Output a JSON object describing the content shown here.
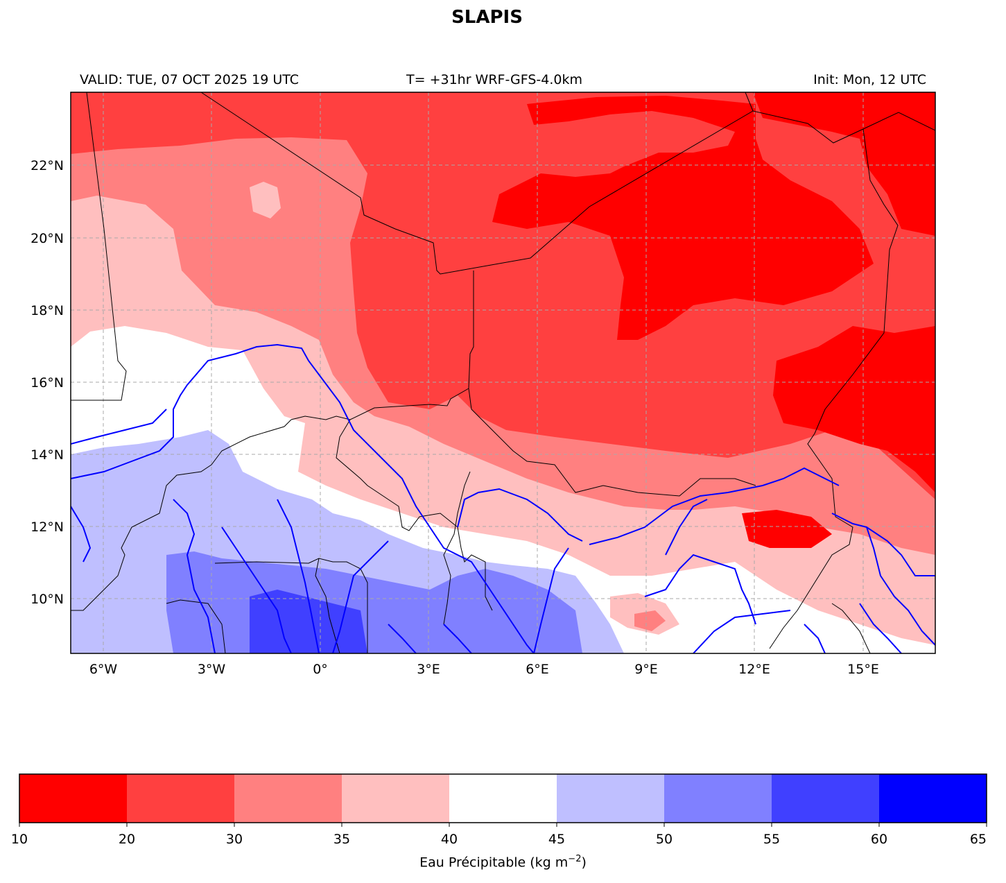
{
  "title": "SLAPIS",
  "header": {
    "valid": "VALID: TUE, 07 OCT 2025 19 UTC",
    "model": "T= +31hr WRF-GFS-4.0km",
    "init": "Init: Mon, 12 UTC"
  },
  "map": {
    "lon_ticks": [
      "6°W",
      "3°W",
      "0°",
      "3°E",
      "6°E",
      "9°E",
      "12°E",
      "15°E"
    ],
    "lat_ticks": [
      "22°N",
      "20°N",
      "18°N",
      "16°N",
      "14°N",
      "12°N",
      "10°N"
    ],
    "grid": true,
    "country_border_color": "#000000",
    "river_color": "#0000ff"
  },
  "colorbar": {
    "boundaries": [
      "10",
      "20",
      "30",
      "35",
      "40",
      "45",
      "50",
      "55",
      "60",
      "65"
    ],
    "colors": [
      "#ff0000",
      "#ff4040",
      "#ff8080",
      "#ffbfbf",
      "#ffffff",
      "#bfbfff",
      "#8080ff",
      "#4040ff",
      "#0000ff"
    ],
    "label_main": "Eau Précipitable (kg m",
    "label_exp": "−2",
    "label_close": ")"
  }
}
